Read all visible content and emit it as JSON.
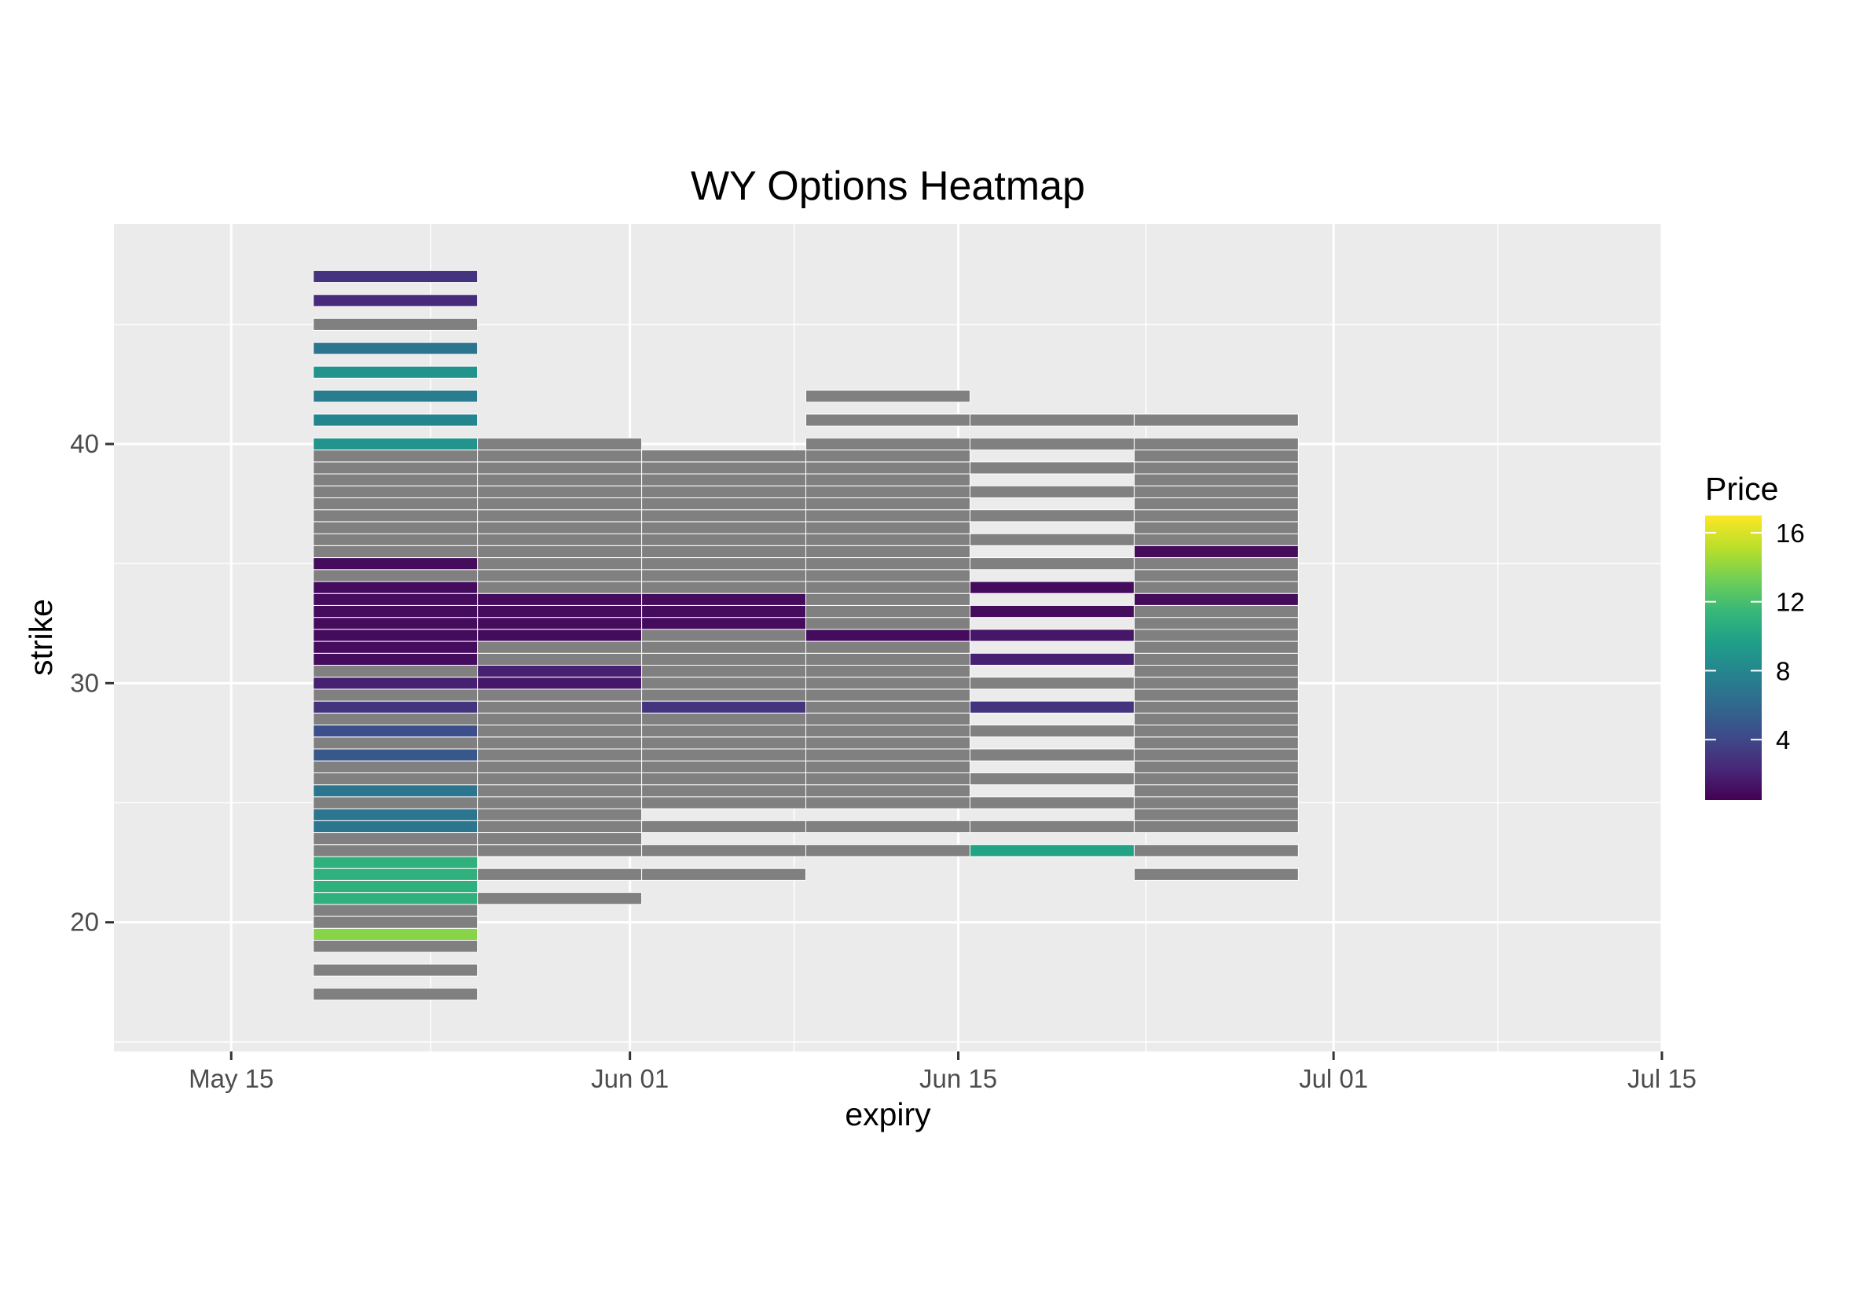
{
  "chart_data": {
    "type": "heatmap",
    "title": "WY Options Heatmap",
    "xlabel": "expiry",
    "ylabel": "strike",
    "x_ticks": [
      "May 15",
      "Jun 01",
      "Jun 15",
      "Jul 01",
      "Jul 15"
    ],
    "x_tick_dates": [
      "2020-05-15",
      "2020-06-01",
      "2020-06-15",
      "2020-07-01",
      "2020-07-15"
    ],
    "xlim": [
      "2020-05-10",
      "2020-07-15"
    ],
    "y_ticks": [
      20,
      30,
      40
    ],
    "ylim": [
      14.6,
      49.2
    ],
    "grid": true,
    "legend": {
      "title": "Price",
      "position": "right",
      "ticks": [
        4,
        8,
        12,
        16
      ],
      "range": [
        0.5,
        17
      ]
    },
    "na_color": "#808080",
    "palette": [
      "#440154",
      "#482878",
      "#3e4a89",
      "#31688e",
      "#26828e",
      "#1f9e89",
      "#35b779",
      "#6ece58",
      "#b5de2b",
      "#fde725"
    ],
    "columns": [
      {
        "expiry": "2020-05-22",
        "tiles": [
          {
            "strike": 17,
            "price": null
          },
          {
            "strike": 18,
            "price": null
          },
          {
            "strike": 19,
            "price": null
          },
          {
            "strike": 19.5,
            "price": 14
          },
          {
            "strike": 20,
            "price": null
          },
          {
            "strike": 20.5,
            "price": null
          },
          {
            "strike": 21,
            "price": 11
          },
          {
            "strike": 21.5,
            "price": 11
          },
          {
            "strike": 22,
            "price": 11
          },
          {
            "strike": 22.5,
            "price": 11
          },
          {
            "strike": 23,
            "price": null
          },
          {
            "strike": 23.5,
            "price": null
          },
          {
            "strike": 24,
            "price": 7
          },
          {
            "strike": 24.5,
            "price": 7
          },
          {
            "strike": 25,
            "price": null
          },
          {
            "strike": 25.5,
            "price": 7
          },
          {
            "strike": 26,
            "price": null
          },
          {
            "strike": 26.5,
            "price": null
          },
          {
            "strike": 27,
            "price": 5
          },
          {
            "strike": 27.5,
            "price": null
          },
          {
            "strike": 28,
            "price": 4.5
          },
          {
            "strike": 28.5,
            "price": null
          },
          {
            "strike": 29,
            "price": 3
          },
          {
            "strike": 29.5,
            "price": null
          },
          {
            "strike": 30,
            "price": 2
          },
          {
            "strike": 30.5,
            "price": null
          },
          {
            "strike": 31,
            "price": 1
          },
          {
            "strike": 31.5,
            "price": 1
          },
          {
            "strike": 32,
            "price": 1
          },
          {
            "strike": 32.5,
            "price": 1
          },
          {
            "strike": 33,
            "price": 1
          },
          {
            "strike": 33.5,
            "price": 1
          },
          {
            "strike": 34,
            "price": 1
          },
          {
            "strike": 34.5,
            "price": null
          },
          {
            "strike": 35,
            "price": 1
          },
          {
            "strike": 35.5,
            "price": null
          },
          {
            "strike": 36,
            "price": null
          },
          {
            "strike": 36.5,
            "price": null
          },
          {
            "strike": 37,
            "price": null
          },
          {
            "strike": 37.5,
            "price": null
          },
          {
            "strike": 38,
            "price": null
          },
          {
            "strike": 38.5,
            "price": null
          },
          {
            "strike": 39,
            "price": null
          },
          {
            "strike": 39.5,
            "price": null
          },
          {
            "strike": 40,
            "price": 9
          },
          {
            "strike": 41,
            "price": 8
          },
          {
            "strike": 42,
            "price": 7.5
          },
          {
            "strike": 43,
            "price": 9
          },
          {
            "strike": 44,
            "price": 7
          },
          {
            "strike": 45,
            "price": null
          },
          {
            "strike": 46,
            "price": 2.5
          },
          {
            "strike": 47,
            "price": 3
          }
        ]
      },
      {
        "expiry": "2020-05-29",
        "tiles": [
          {
            "strike": 21,
            "price": null
          },
          {
            "strike": 22,
            "price": null
          },
          {
            "strike": 23,
            "price": null
          },
          {
            "strike": 23.5,
            "price": null
          },
          {
            "strike": 24,
            "price": null
          },
          {
            "strike": 24.5,
            "price": null
          },
          {
            "strike": 25,
            "price": null
          },
          {
            "strike": 25.5,
            "price": null
          },
          {
            "strike": 26,
            "price": null
          },
          {
            "strike": 26.5,
            "price": null
          },
          {
            "strike": 27,
            "price": null
          },
          {
            "strike": 27.5,
            "price": null
          },
          {
            "strike": 28,
            "price": null
          },
          {
            "strike": 28.5,
            "price": null
          },
          {
            "strike": 29,
            "price": null
          },
          {
            "strike": 29.5,
            "price": null
          },
          {
            "strike": 30,
            "price": 1.5
          },
          {
            "strike": 30.5,
            "price": 2
          },
          {
            "strike": 31,
            "price": null
          },
          {
            "strike": 31.5,
            "price": null
          },
          {
            "strike": 32,
            "price": 1
          },
          {
            "strike": 32.5,
            "price": 1
          },
          {
            "strike": 33,
            "price": 1
          },
          {
            "strike": 33.5,
            "price": 1
          },
          {
            "strike": 34,
            "price": null
          },
          {
            "strike": 34.5,
            "price": null
          },
          {
            "strike": 35,
            "price": null
          },
          {
            "strike": 35.5,
            "price": null
          },
          {
            "strike": 36,
            "price": null
          },
          {
            "strike": 36.5,
            "price": null
          },
          {
            "strike": 37,
            "price": null
          },
          {
            "strike": 37.5,
            "price": null
          },
          {
            "strike": 38,
            "price": null
          },
          {
            "strike": 38.5,
            "price": null
          },
          {
            "strike": 39,
            "price": null
          },
          {
            "strike": 39.5,
            "price": null
          },
          {
            "strike": 40,
            "price": null
          }
        ]
      },
      {
        "expiry": "2020-06-05",
        "tiles": [
          {
            "strike": 22,
            "price": null
          },
          {
            "strike": 23,
            "price": null
          },
          {
            "strike": 24,
            "price": null
          },
          {
            "strike": 25,
            "price": null
          },
          {
            "strike": 25.5,
            "price": null
          },
          {
            "strike": 26,
            "price": null
          },
          {
            "strike": 26.5,
            "price": null
          },
          {
            "strike": 27,
            "price": null
          },
          {
            "strike": 27.5,
            "price": null
          },
          {
            "strike": 28,
            "price": null
          },
          {
            "strike": 28.5,
            "price": null
          },
          {
            "strike": 29,
            "price": 3
          },
          {
            "strike": 29.5,
            "price": null
          },
          {
            "strike": 30,
            "price": null
          },
          {
            "strike": 30.5,
            "price": null
          },
          {
            "strike": 31,
            "price": null
          },
          {
            "strike": 31.5,
            "price": null
          },
          {
            "strike": 32,
            "price": null
          },
          {
            "strike": 32.5,
            "price": 1
          },
          {
            "strike": 33,
            "price": 1
          },
          {
            "strike": 33.5,
            "price": 1
          },
          {
            "strike": 34,
            "price": null
          },
          {
            "strike": 34.5,
            "price": null
          },
          {
            "strike": 35,
            "price": null
          },
          {
            "strike": 35.5,
            "price": null
          },
          {
            "strike": 36,
            "price": null
          },
          {
            "strike": 36.5,
            "price": null
          },
          {
            "strike": 37,
            "price": null
          },
          {
            "strike": 37.5,
            "price": null
          },
          {
            "strike": 38,
            "price": null
          },
          {
            "strike": 38.5,
            "price": null
          },
          {
            "strike": 39,
            "price": null
          },
          {
            "strike": 39.5,
            "price": null
          }
        ]
      },
      {
        "expiry": "2020-06-12",
        "tiles": [
          {
            "strike": 23,
            "price": null
          },
          {
            "strike": 24,
            "price": null
          },
          {
            "strike": 25,
            "price": null
          },
          {
            "strike": 25.5,
            "price": null
          },
          {
            "strike": 26,
            "price": null
          },
          {
            "strike": 26.5,
            "price": null
          },
          {
            "strike": 27,
            "price": null
          },
          {
            "strike": 27.5,
            "price": null
          },
          {
            "strike": 28,
            "price": null
          },
          {
            "strike": 28.5,
            "price": null
          },
          {
            "strike": 29,
            "price": null
          },
          {
            "strike": 29.5,
            "price": null
          },
          {
            "strike": 30,
            "price": null
          },
          {
            "strike": 30.5,
            "price": null
          },
          {
            "strike": 31,
            "price": null
          },
          {
            "strike": 31.5,
            "price": null
          },
          {
            "strike": 32,
            "price": 1
          },
          {
            "strike": 32.5,
            "price": null
          },
          {
            "strike": 33,
            "price": null
          },
          {
            "strike": 33.5,
            "price": null
          },
          {
            "strike": 34,
            "price": null
          },
          {
            "strike": 34.5,
            "price": null
          },
          {
            "strike": 35,
            "price": null
          },
          {
            "strike": 35.5,
            "price": null
          },
          {
            "strike": 36,
            "price": null
          },
          {
            "strike": 36.5,
            "price": null
          },
          {
            "strike": 37,
            "price": null
          },
          {
            "strike": 37.5,
            "price": null
          },
          {
            "strike": 38,
            "price": null
          },
          {
            "strike": 38.5,
            "price": null
          },
          {
            "strike": 39,
            "price": null
          },
          {
            "strike": 39.5,
            "price": null
          },
          {
            "strike": 40,
            "price": null
          },
          {
            "strike": 41,
            "price": null
          },
          {
            "strike": 42,
            "price": null
          }
        ]
      },
      {
        "expiry": "2020-06-19",
        "tiles": [
          {
            "strike": 23,
            "price": 10
          },
          {
            "strike": 24,
            "price": null
          },
          {
            "strike": 25,
            "price": null
          },
          {
            "strike": 26,
            "price": null
          },
          {
            "strike": 27,
            "price": null
          },
          {
            "strike": 28,
            "price": null
          },
          {
            "strike": 29,
            "price": 3
          },
          {
            "strike": 30,
            "price": null
          },
          {
            "strike": 31,
            "price": 2
          },
          {
            "strike": 32,
            "price": 1.5
          },
          {
            "strike": 33,
            "price": 1
          },
          {
            "strike": 34,
            "price": 1
          },
          {
            "strike": 35,
            "price": null
          },
          {
            "strike": 36,
            "price": null
          },
          {
            "strike": 37,
            "price": null
          },
          {
            "strike": 38,
            "price": null
          },
          {
            "strike": 39,
            "price": null
          },
          {
            "strike": 40,
            "price": null
          },
          {
            "strike": 41,
            "price": null
          }
        ]
      },
      {
        "expiry": "2020-06-26",
        "tiles": [
          {
            "strike": 22,
            "price": null
          },
          {
            "strike": 23,
            "price": null
          },
          {
            "strike": 24,
            "price": null
          },
          {
            "strike": 24.5,
            "price": null
          },
          {
            "strike": 25,
            "price": null
          },
          {
            "strike": 25.5,
            "price": null
          },
          {
            "strike": 26,
            "price": null
          },
          {
            "strike": 26.5,
            "price": null
          },
          {
            "strike": 27,
            "price": null
          },
          {
            "strike": 27.5,
            "price": null
          },
          {
            "strike": 28,
            "price": null
          },
          {
            "strike": 28.5,
            "price": null
          },
          {
            "strike": 29,
            "price": null
          },
          {
            "strike": 29.5,
            "price": null
          },
          {
            "strike": 30,
            "price": null
          },
          {
            "strike": 30.5,
            "price": null
          },
          {
            "strike": 31,
            "price": null
          },
          {
            "strike": 31.5,
            "price": null
          },
          {
            "strike": 32,
            "price": null
          },
          {
            "strike": 32.5,
            "price": null
          },
          {
            "strike": 33,
            "price": null
          },
          {
            "strike": 33.5,
            "price": 1
          },
          {
            "strike": 34,
            "price": null
          },
          {
            "strike": 34.5,
            "price": null
          },
          {
            "strike": 35,
            "price": null
          },
          {
            "strike": 35.5,
            "price": 1
          },
          {
            "strike": 36,
            "price": null
          },
          {
            "strike": 36.5,
            "price": null
          },
          {
            "strike": 37,
            "price": null
          },
          {
            "strike": 37.5,
            "price": null
          },
          {
            "strike": 38,
            "price": null
          },
          {
            "strike": 38.5,
            "price": null
          },
          {
            "strike": 39,
            "price": null
          },
          {
            "strike": 39.5,
            "price": null
          },
          {
            "strike": 40,
            "price": null
          },
          {
            "strike": 41,
            "price": null
          }
        ]
      }
    ]
  }
}
